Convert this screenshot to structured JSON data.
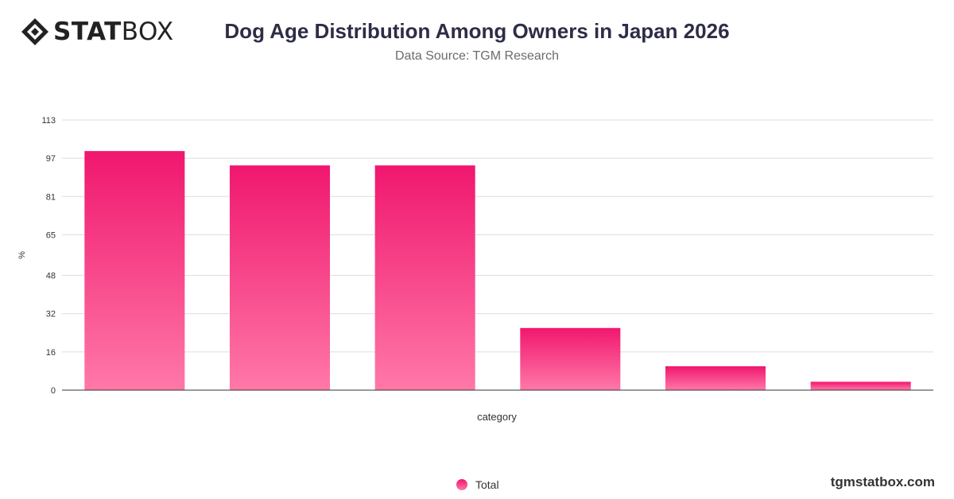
{
  "brand": {
    "logo_bold": "STAT",
    "logo_light": "BOX",
    "watermark": "tgmstatbox.com"
  },
  "colors": {
    "bar_top": "#f0176e",
    "bar_bottom": "#ff78a8",
    "grid": "#dddddd",
    "axis": "#333333"
  },
  "chart_data": {
    "type": "bar",
    "title": "Dog Age Distribution Among Owners in Japan 2026",
    "subtitle": "Data Source: TGM Research",
    "xlabel": "category",
    "ylabel": "%",
    "ylim": [
      0,
      113
    ],
    "yticks": [
      "0",
      "16",
      "32",
      "48",
      "65",
      "81",
      "97",
      "113"
    ],
    "categories": [
      "",
      "",
      "",
      "",
      "",
      ""
    ],
    "series": [
      {
        "name": "Total",
        "values": [
          100,
          94,
          94,
          26,
          10,
          3.5
        ]
      }
    ],
    "grid": true,
    "legend": "bottom"
  }
}
